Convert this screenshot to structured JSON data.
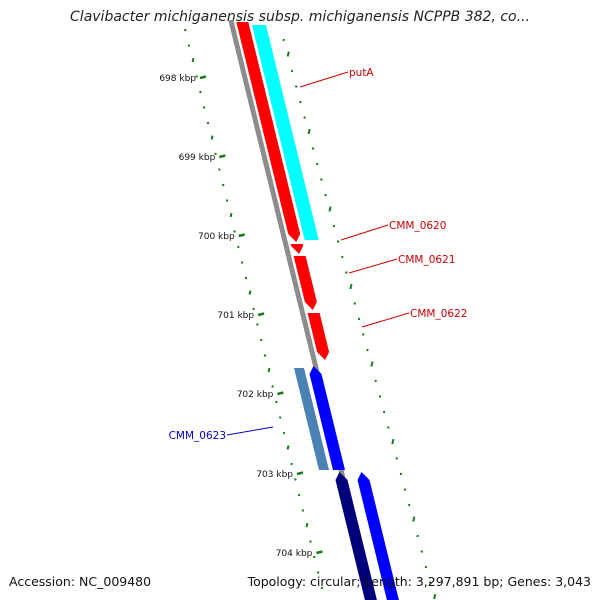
{
  "header": {
    "title": "Clavibacter michiganensis subsp. michiganensis NCPPB 382, co..."
  },
  "footer": {
    "accession_label": "Accession:",
    "accession_value": "NC_009480",
    "topology_label": "Topology:",
    "topology_value": "circular;",
    "length_label": "Length:",
    "length_value": "3,297,891 bp;",
    "genes_label": "Genes:",
    "genes_value": "3,043"
  },
  "scale": {
    "ticks": [
      {
        "label": "698 kbp"
      },
      {
        "label": "699 kbp"
      },
      {
        "label": "700 kbp"
      },
      {
        "label": "701 kbp"
      },
      {
        "label": "702 kbp"
      },
      {
        "label": "703 kbp"
      },
      {
        "label": "704 kbp"
      }
    ]
  },
  "genes": [
    {
      "label": "putA",
      "strand": "reverse"
    },
    {
      "label": "CMM_0620",
      "strand": "reverse"
    },
    {
      "label": "CMM_0621",
      "strand": "reverse"
    },
    {
      "label": "CMM_0622",
      "strand": "reverse"
    },
    {
      "label": "CMM_0623",
      "strand": "forward"
    }
  ],
  "colors": {
    "background": "#ffffff",
    "backbone": "#8c8c8c",
    "scale_dots": "#1a7a1a",
    "reverse_gene": "#ff0000",
    "forward_gene": "#0000ff",
    "forward_gene_dark": "#00007a",
    "cds_reverse": "#00ffff",
    "cds_forward": "#4a82b4",
    "label_reverse": "#cc0000",
    "label_forward": "#0000cc",
    "tick_text": "#111111"
  }
}
